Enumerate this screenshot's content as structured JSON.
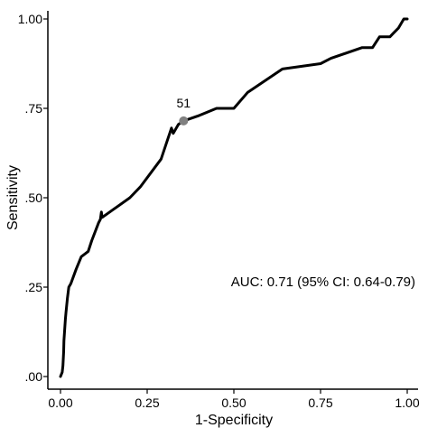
{
  "chart_data": {
    "type": "line",
    "xlabel": "1-Specificity",
    "ylabel": "Sensitivity",
    "xlim": [
      0,
      1
    ],
    "ylim": [
      0,
      1
    ],
    "x_ticks": [
      0,
      0.25,
      0.5,
      0.75,
      1
    ],
    "x_tick_labels": [
      "0.00",
      "0.25",
      "0.50",
      "0.75",
      "1.00"
    ],
    "y_ticks": [
      0,
      0.25,
      0.5,
      0.75,
      1
    ],
    "y_tick_labels": [
      ".00",
      ".25",
      ".50",
      ".75",
      "1.00"
    ],
    "grid": false,
    "series": [
      {
        "color": "#000000",
        "x": [
          0.0,
          0.005,
          0.007,
          0.009,
          0.01,
          0.012,
          0.014,
          0.016,
          0.018,
          0.02,
          0.024,
          0.03,
          0.045,
          0.06,
          0.08,
          0.09,
          0.11,
          0.115,
          0.118,
          0.12,
          0.2,
          0.23,
          0.29,
          0.32,
          0.325,
          0.34,
          0.355,
          0.4,
          0.45,
          0.5,
          0.54,
          0.64,
          0.75,
          0.78,
          0.87,
          0.9,
          0.92,
          0.95,
          0.96,
          0.975,
          0.99,
          1.0
        ],
        "y": [
          0.0,
          0.012,
          0.03,
          0.07,
          0.1,
          0.13,
          0.16,
          0.18,
          0.2,
          0.22,
          0.25,
          0.26,
          0.3,
          0.335,
          0.35,
          0.38,
          0.43,
          0.44,
          0.46,
          0.445,
          0.5,
          0.53,
          0.608,
          0.695,
          0.68,
          0.705,
          0.715,
          0.73,
          0.75,
          0.75,
          0.795,
          0.86,
          0.875,
          0.89,
          0.92,
          0.92,
          0.95,
          0.95,
          0.96,
          0.975,
          1.0,
          1.0
        ]
      }
    ],
    "highlight_point": {
      "x": 0.355,
      "y": 0.715,
      "label": "51",
      "color": "#808080"
    },
    "annotations": [
      {
        "text": "AUC: 0.71 (95% CI: 0.64-0.79)",
        "x": 1.0,
        "y": 0.265
      }
    ]
  }
}
